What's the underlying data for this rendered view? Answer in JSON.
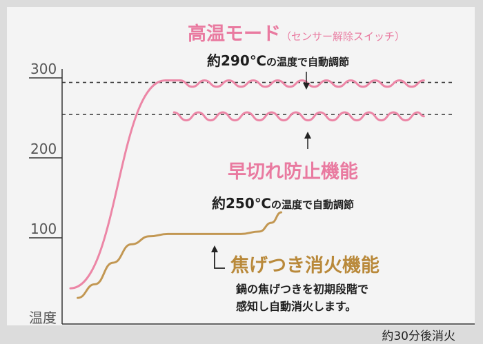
{
  "chart_data": {
    "type": "line",
    "title": "",
    "ylabel": "温度",
    "xlabel": "約30分後消火",
    "yticks": [
      100,
      200,
      300
    ],
    "ylim": [
      0,
      320
    ],
    "xlim": [
      0,
      30
    ],
    "grid": false,
    "reference_lines": [
      290,
      250
    ],
    "series": [
      {
        "key": "high",
        "color": "#ec86a6",
        "x": [
          0,
          7.8,
          9,
          10,
          11,
          12,
          13,
          14,
          15,
          16,
          17,
          18,
          19,
          20,
          21,
          22,
          23,
          24,
          25,
          26,
          27,
          28,
          29
        ],
        "y": [
          30,
          290,
          290,
          282,
          290,
          282,
          290,
          282,
          290,
          282,
          290,
          282,
          290,
          282,
          290,
          282,
          290,
          282,
          290,
          282,
          290,
          282,
          290
        ]
      },
      {
        "key": "anti_cut",
        "color": "#ec86a6",
        "x": [
          8.5,
          9.5,
          10.5,
          11.5,
          12.5,
          13.5,
          14.5,
          15.5,
          16.5,
          17.5,
          18.5,
          19.5,
          20.5,
          21.5,
          22.5,
          23.5,
          24.5,
          25.5,
          26.5,
          27.5,
          28.5,
          29
        ],
        "y": [
          250,
          240,
          250,
          240,
          250,
          240,
          250,
          240,
          250,
          240,
          250,
          240,
          250,
          240,
          250,
          240,
          250,
          240,
          250,
          240,
          250,
          245
        ]
      },
      {
        "key": "scorch",
        "color": "#c29752",
        "x": [
          0.6,
          2,
          3.5,
          5,
          6.5,
          8,
          10,
          12,
          14,
          15.5,
          16.5,
          17.3
        ],
        "y": [
          18,
          35,
          62,
          85,
          95,
          98,
          98,
          98,
          98,
          101,
          112,
          125
        ]
      }
    ]
  },
  "labels": {
    "high_title": "高温モード",
    "high_sub": "（センサー解除スイッチ）",
    "high_ann_prefix": "約",
    "high_ann_value": "290℃",
    "high_ann_suffix": "の温度で自動調節",
    "anticut_title": "早切れ防止機能",
    "anticut_ann_prefix": "約",
    "anticut_ann_value": "250℃",
    "anticut_ann_suffix": "の温度で自動調節",
    "scorch_title": "焦げつき消火機能",
    "scorch_desc_1": "鍋の焦げつきを初期段階で",
    "scorch_desc_2": "感知し自動消火します。"
  },
  "colors": {
    "background": "#dcdcdc",
    "panel": "#f4f4f4",
    "pink": "#e97aa0",
    "gold": "#b9893a",
    "axis": "#333333"
  }
}
